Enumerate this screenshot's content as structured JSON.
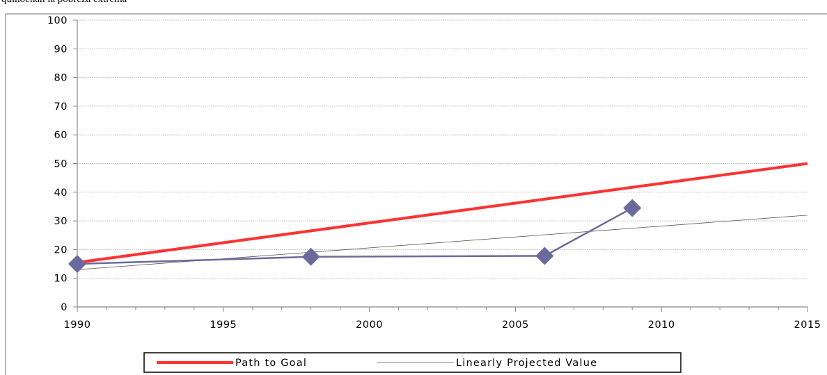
{
  "header_fragment": "quinoenan la pobreza extrema",
  "chart_data": {
    "type": "line",
    "title": "",
    "xlabel": "",
    "ylabel": "",
    "xlim": [
      1990,
      2015
    ],
    "ylim": [
      0,
      100
    ],
    "x_ticks": [
      1990,
      1995,
      2000,
      2005,
      2010,
      2015
    ],
    "y_ticks": [
      0,
      10,
      20,
      30,
      40,
      50,
      60,
      70,
      80,
      90,
      100
    ],
    "grid": "horizontal",
    "legend_position": "bottom",
    "series": [
      {
        "name": "",
        "color": "#6a6a9c",
        "marker": "diamond",
        "points": [
          [
            1990,
            15
          ],
          [
            1998,
            17.5
          ],
          [
            2006,
            17.8
          ],
          [
            2009,
            34.5
          ]
        ]
      },
      {
        "name": "Path to Goal",
        "color": "#ff3333",
        "marker": "none",
        "points": [
          [
            1990,
            15.5
          ],
          [
            2015,
            50
          ]
        ]
      },
      {
        "name": "Linearly Projected Value",
        "color": "#555555",
        "marker": "none",
        "points": [
          [
            1990,
            13
          ],
          [
            2015,
            32
          ]
        ]
      }
    ]
  }
}
